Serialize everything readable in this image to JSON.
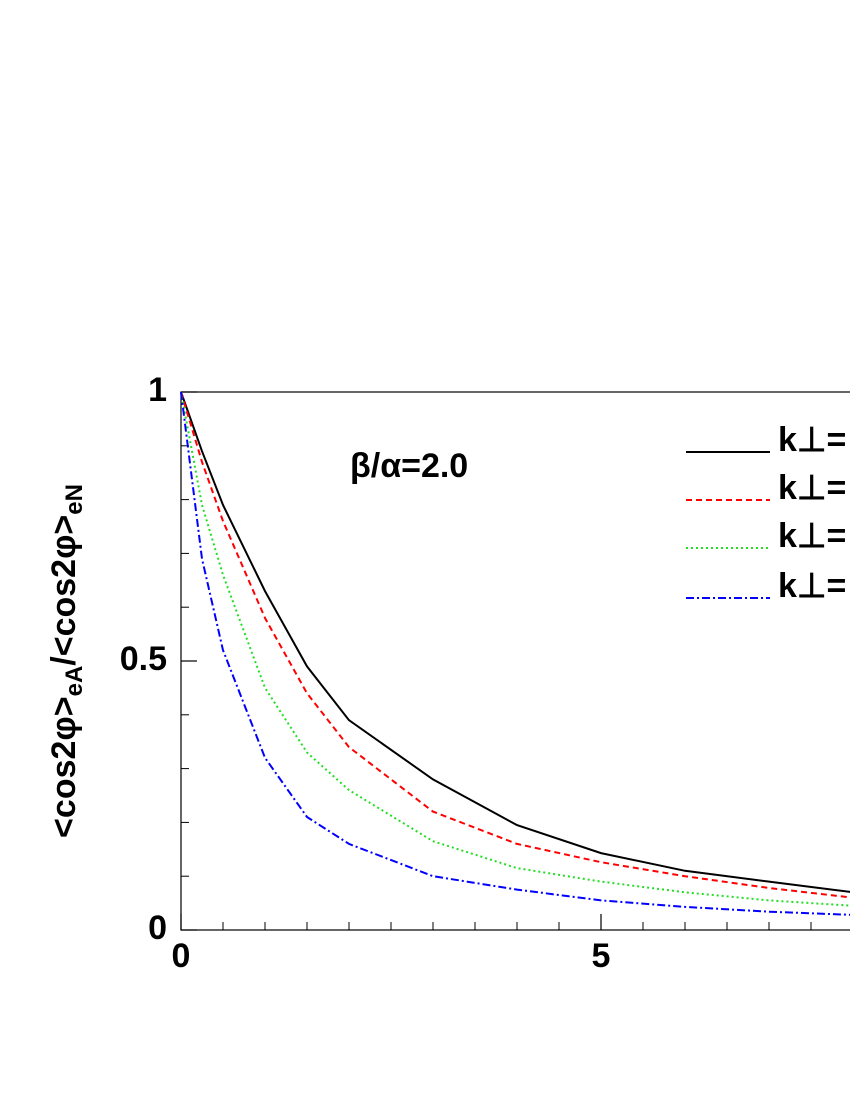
{
  "chart_data": {
    "type": "line",
    "ylabel": [
      "<cos2φ>",
      "eA",
      "/<cos2φ>",
      "eN"
    ],
    "annotation": "β/α=2.0",
    "x": [
      0,
      0.25,
      0.5,
      1,
      1.5,
      2,
      3,
      4,
      5,
      6,
      7,
      8
    ],
    "series": [
      {
        "name": "k⊥=",
        "color": "#000000",
        "dash": "solid",
        "values": [
          1,
          0.89,
          0.79,
          0.63,
          0.49,
          0.39,
          0.28,
          0.195,
          0.143,
          0.11,
          0.09,
          0.07
        ]
      },
      {
        "name": "k⊥=",
        "color": "#ff0000",
        "dash": "dashed",
        "values": [
          1,
          0.87,
          0.76,
          0.58,
          0.44,
          0.34,
          0.22,
          0.16,
          0.126,
          0.1,
          0.078,
          0.06
        ]
      },
      {
        "name": "k⊥=",
        "color": "#22dd22",
        "dash": "dotted",
        "values": [
          1,
          0.79,
          0.66,
          0.45,
          0.33,
          0.26,
          0.165,
          0.115,
          0.09,
          0.07,
          0.055,
          0.045
        ]
      },
      {
        "name": "k⊥=",
        "color": "#0000ff",
        "dash": "dashdot",
        "values": [
          1,
          0.69,
          0.52,
          0.32,
          0.21,
          0.16,
          0.1,
          0.075,
          0.055,
          0.043,
          0.034,
          0.028
        ]
      }
    ],
    "xlim": [
      0,
      8
    ],
    "ylim": [
      0,
      1
    ],
    "xticks": [
      0,
      5
    ],
    "yticks": [
      0,
      0.5,
      1
    ],
    "minor_xticks": [
      0.5,
      1,
      1.5,
      2,
      2.5,
      3,
      3.5,
      4,
      4.5,
      5.5,
      6,
      6.5,
      7,
      7.5
    ],
    "minor_yticks": [
      0.1,
      0.2,
      0.3,
      0.4,
      0.6,
      0.7,
      0.8,
      0.9
    ],
    "legend": "upper right",
    "grid": false
  }
}
